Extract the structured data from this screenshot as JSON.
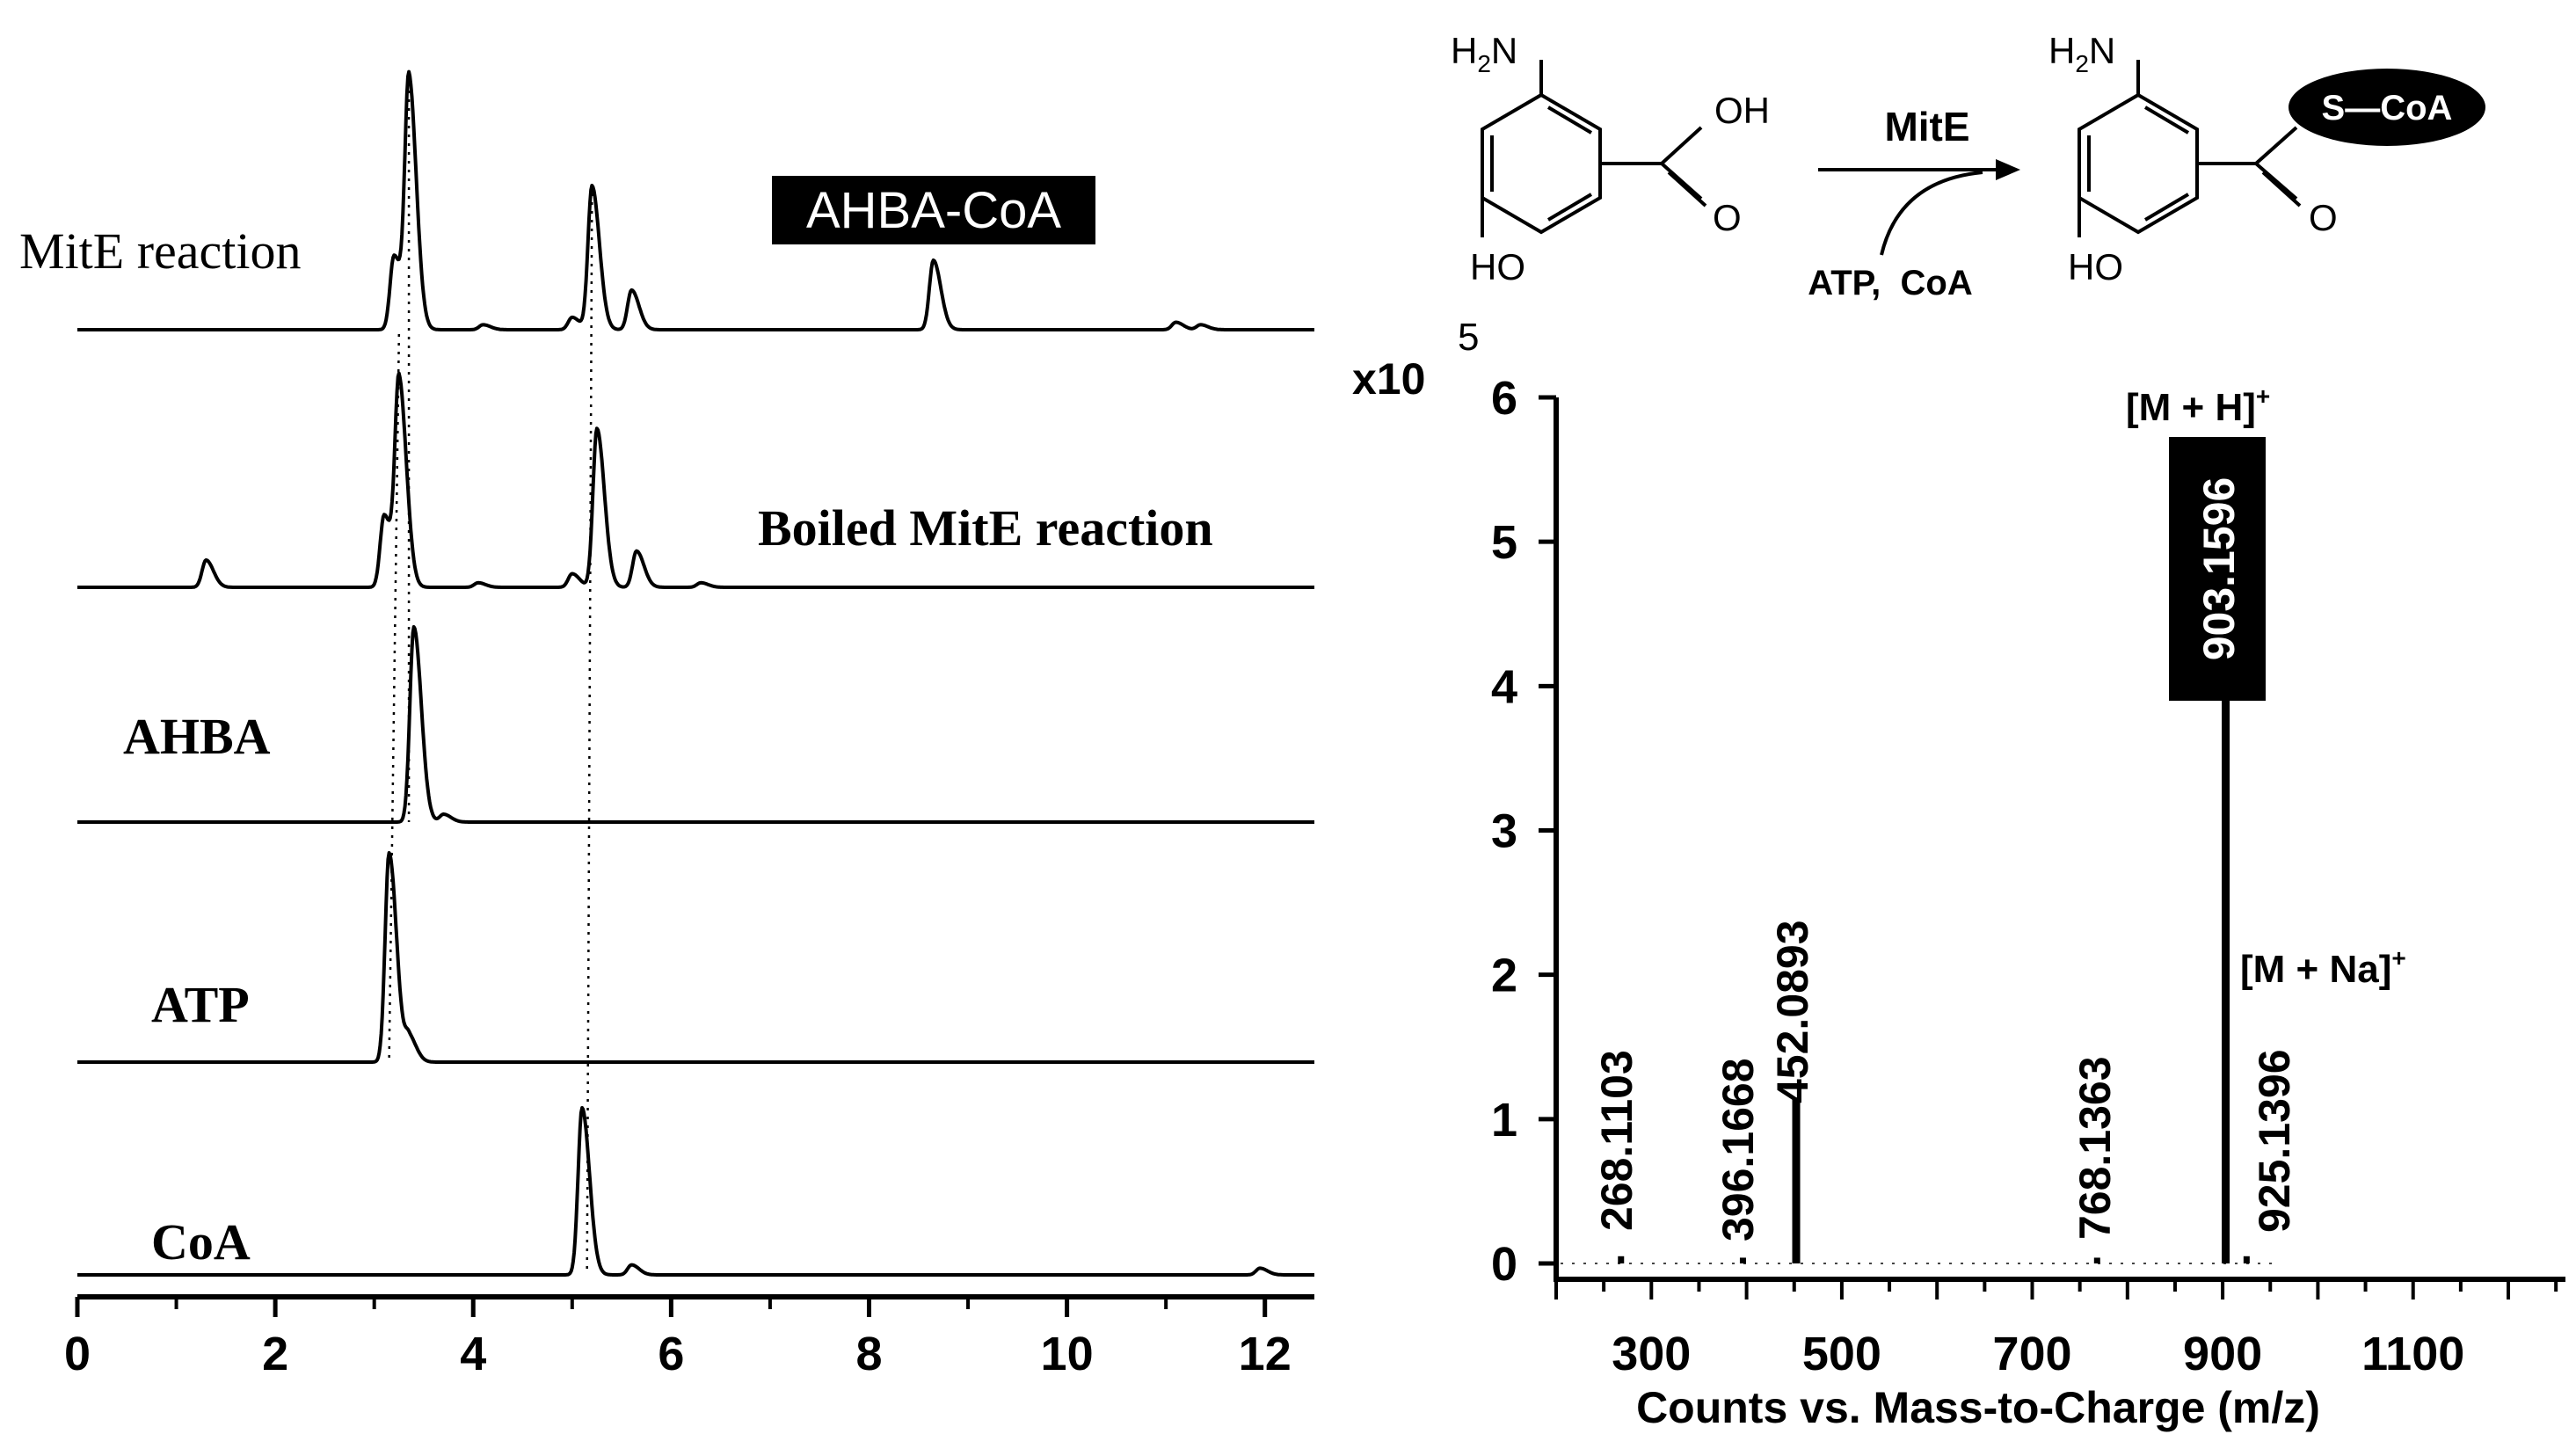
{
  "chromatogram": {
    "x_ticks": [
      "0",
      "2",
      "4",
      "6",
      "8",
      "10",
      "12"
    ],
    "product_label": "AHBA-CoA",
    "trace_labels": [
      "MitE reaction",
      "Boiled MitE reaction",
      "AHBA",
      "ATP",
      "CoA"
    ]
  },
  "scheme": {
    "enzyme": "MitE",
    "cofactors": "ATP,  CoA",
    "substrate_labels": {
      "amine": "H2N",
      "hydroxyl": "HO",
      "acid": "OH",
      "carbonyl": "O"
    },
    "product_labels": {
      "amine": "H2N",
      "hydroxyl": "HO",
      "thioester": "S—CoA",
      "carbonyl": "O"
    }
  },
  "mass_spectrum": {
    "y_multiplier": "x10",
    "y_exponent": "5",
    "y_ticks": [
      "0",
      "1",
      "2",
      "3",
      "4",
      "5",
      "6"
    ],
    "x_ticks": [
      "300",
      "500",
      "700",
      "900",
      "1100"
    ],
    "xlabel": "Counts vs. Mass-to-Charge (m/z)",
    "peak_labels": [
      "268.1103",
      "396.1668",
      "452.0893",
      "768.1363",
      "903.1596",
      "925.1396"
    ],
    "ion_labels": {
      "mh": "[M + H]",
      "mna": "[M + Na]",
      "charge": "+"
    }
  },
  "chart_data": [
    {
      "type": "line",
      "xlim": [
        0,
        12.5
      ],
      "x_ticks": [
        0,
        2,
        4,
        6,
        8,
        10,
        12
      ],
      "series": [
        {
          "name": "MitE reaction",
          "peaks": [
            [
              3.2,
              0.3
            ],
            [
              3.35,
              1.0
            ],
            [
              4.1,
              0.02
            ],
            [
              5.0,
              0.05
            ],
            [
              5.2,
              0.58
            ],
            [
              5.6,
              0.16
            ],
            [
              8.65,
              0.28
            ],
            [
              11.1,
              0.03
            ],
            [
              11.35,
              0.02
            ]
          ]
        },
        {
          "name": "Boiled MitE reaction",
          "peaks": [
            [
              1.3,
              0.12
            ],
            [
              3.1,
              0.32
            ],
            [
              3.25,
              0.9
            ],
            [
              4.05,
              0.02
            ],
            [
              5.0,
              0.06
            ],
            [
              5.25,
              0.7
            ],
            [
              5.65,
              0.16
            ],
            [
              6.3,
              0.02
            ]
          ]
        },
        {
          "name": "AHBA",
          "peaks": [
            [
              3.4,
              1.0
            ],
            [
              3.7,
              0.04
            ]
          ]
        },
        {
          "name": "ATP",
          "peaks": [
            [
              3.15,
              1.0
            ],
            [
              3.35,
              0.12
            ]
          ]
        },
        {
          "name": "CoA",
          "peaks": [
            [
              5.1,
              1.0
            ],
            [
              5.6,
              0.06
            ],
            [
              11.95,
              0.04
            ]
          ]
        }
      ],
      "reference_lines_x": [
        3.15,
        3.35,
        5.15
      ]
    },
    {
      "type": "bar",
      "xlabel": "Counts vs. Mass-to-Charge (m/z)",
      "ylabel": "x10^5",
      "xlim": [
        200,
        1260
      ],
      "ylim": [
        0,
        6
      ],
      "x_ticks": [
        300,
        500,
        700,
        900,
        1100
      ],
      "y_ticks": [
        0,
        1,
        2,
        3,
        4,
        5,
        6
      ],
      "peaks": [
        {
          "mz": 268.1103,
          "intensity": 0.05
        },
        {
          "mz": 396.1668,
          "intensity": 0.04
        },
        {
          "mz": 452.0893,
          "intensity": 1.15
        },
        {
          "mz": 768.1363,
          "intensity": 0.04
        },
        {
          "mz": 903.1596,
          "intensity": 3.9
        },
        {
          "mz": 925.1396,
          "intensity": 0.05
        }
      ]
    }
  ]
}
